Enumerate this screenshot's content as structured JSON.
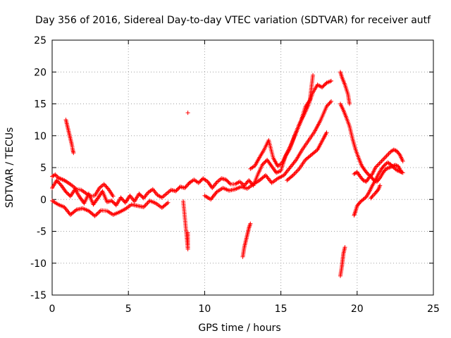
{
  "chart_data": {
    "type": "scatter",
    "title": "Day 356 of 2016, Sidereal Day-to-day VTEC variation (SDTVAR) for receiver autf",
    "xlabel": "GPS time / hours",
    "ylabel": "SDTVAR / TECUs",
    "xlim": [
      0,
      25
    ],
    "ylim": [
      -15,
      25
    ],
    "xticks": [
      0,
      5,
      10,
      15,
      20,
      25
    ],
    "yticks": [
      -15,
      -10,
      -5,
      0,
      5,
      10,
      15,
      20,
      25
    ],
    "grid": true,
    "marker": "+",
    "color": "#ff0000",
    "segments": [
      {
        "name": "main-trace-early",
        "points": [
          [
            0.0,
            1.8
          ],
          [
            0.3,
            3.0
          ],
          [
            0.6,
            2.2
          ],
          [
            0.9,
            1.2
          ],
          [
            1.2,
            0.5
          ],
          [
            1.5,
            1.6
          ],
          [
            1.8,
            0.4
          ],
          [
            2.1,
            -0.6
          ],
          [
            2.4,
            0.9
          ],
          [
            2.7,
            -0.8
          ],
          [
            3.0,
            0.2
          ],
          [
            3.3,
            1.3
          ],
          [
            3.6,
            -0.4
          ],
          [
            3.9,
            -0.2
          ],
          [
            4.2,
            -0.9
          ],
          [
            4.5,
            0.3
          ],
          [
            4.8,
            -0.5
          ],
          [
            5.1,
            0.6
          ],
          [
            5.4,
            -0.3
          ],
          [
            5.7,
            0.9
          ],
          [
            6.0,
            0.2
          ],
          [
            6.3,
            1.1
          ],
          [
            6.6,
            1.6
          ],
          [
            6.9,
            0.7
          ],
          [
            7.2,
            0.3
          ],
          [
            7.5,
            0.9
          ],
          [
            7.8,
            1.5
          ],
          [
            8.1,
            1.3
          ],
          [
            8.4,
            2.0
          ],
          [
            8.7,
            1.8
          ],
          [
            9.0,
            2.6
          ]
        ]
      },
      {
        "name": "lower-band-early",
        "points": [
          [
            0.0,
            -0.2
          ],
          [
            0.4,
            -0.8
          ],
          [
            0.8,
            -1.2
          ],
          [
            1.2,
            -2.4
          ],
          [
            1.6,
            -1.6
          ],
          [
            2.0,
            -1.4
          ],
          [
            2.4,
            -1.8
          ],
          [
            2.8,
            -2.6
          ],
          [
            3.2,
            -1.7
          ],
          [
            3.6,
            -1.8
          ],
          [
            4.0,
            -2.4
          ],
          [
            4.4,
            -2.0
          ],
          [
            4.8,
            -1.5
          ],
          [
            5.2,
            -0.8
          ],
          [
            5.6,
            -1.0
          ],
          [
            6.0,
            -1.2
          ],
          [
            6.4,
            -0.2
          ],
          [
            6.8,
            -0.6
          ],
          [
            7.2,
            -1.3
          ],
          [
            7.6,
            -0.5
          ]
        ]
      },
      {
        "name": "upper-band-early",
        "points": [
          [
            0.0,
            3.6
          ],
          [
            0.2,
            3.9
          ],
          [
            0.4,
            3.4
          ],
          [
            0.6,
            3.2
          ],
          [
            0.8,
            3.0
          ],
          [
            1.0,
            2.7
          ],
          [
            1.3,
            2.2
          ],
          [
            1.6,
            1.6
          ],
          [
            1.9,
            1.5
          ],
          [
            2.2,
            1.0
          ],
          [
            2.5,
            0.5
          ],
          [
            2.8,
            0.6
          ],
          [
            3.1,
            1.8
          ],
          [
            3.4,
            2.4
          ],
          [
            3.7,
            1.6
          ],
          [
            4.0,
            0.5
          ]
        ]
      },
      {
        "name": "spike-1h",
        "points": [
          [
            0.9,
            12.5
          ],
          [
            1.0,
            11.5
          ],
          [
            1.1,
            10.5
          ],
          [
            1.2,
            9.5
          ],
          [
            1.3,
            8.5
          ],
          [
            1.35,
            7.8
          ],
          [
            1.4,
            7.3
          ]
        ]
      },
      {
        "name": "mid-trace",
        "points": [
          [
            9.0,
            2.6
          ],
          [
            9.3,
            3.1
          ],
          [
            9.6,
            2.6
          ],
          [
            9.9,
            3.3
          ],
          [
            10.2,
            2.8
          ],
          [
            10.5,
            1.8
          ],
          [
            10.8,
            2.7
          ],
          [
            11.1,
            3.3
          ],
          [
            11.4,
            3.1
          ],
          [
            11.7,
            2.4
          ],
          [
            12.0,
            2.4
          ],
          [
            12.3,
            2.8
          ],
          [
            12.6,
            2.2
          ],
          [
            12.9,
            3.0
          ],
          [
            13.2,
            2.2
          ],
          [
            13.5,
            4.0
          ],
          [
            13.8,
            5.5
          ],
          [
            14.1,
            6.2
          ],
          [
            14.4,
            5.2
          ],
          [
            14.7,
            4.2
          ],
          [
            15.0,
            4.5
          ],
          [
            15.3,
            6.8
          ],
          [
            15.6,
            8.0
          ],
          [
            15.9,
            10.0
          ],
          [
            16.2,
            11.8
          ],
          [
            16.5,
            13.2
          ],
          [
            16.8,
            14.8
          ],
          [
            17.1,
            16.8
          ],
          [
            17.4,
            18.0
          ],
          [
            17.7,
            17.6
          ],
          [
            18.0,
            18.3
          ],
          [
            18.3,
            18.6
          ]
        ]
      },
      {
        "name": "mid-lower-band",
        "points": [
          [
            10.0,
            0.6
          ],
          [
            10.4,
            0.0
          ],
          [
            10.8,
            1.2
          ],
          [
            11.2,
            1.8
          ],
          [
            11.6,
            1.4
          ],
          [
            12.0,
            1.6
          ],
          [
            12.4,
            2.0
          ],
          [
            12.8,
            1.7
          ],
          [
            13.2,
            2.4
          ],
          [
            13.6,
            3.0
          ],
          [
            14.0,
            3.8
          ],
          [
            14.4,
            2.6
          ],
          [
            14.8,
            3.3
          ],
          [
            15.2,
            3.8
          ],
          [
            15.6,
            5.0
          ],
          [
            16.0,
            6.2
          ],
          [
            16.4,
            7.8
          ],
          [
            16.8,
            9.2
          ],
          [
            17.2,
            10.6
          ],
          [
            17.6,
            12.4
          ],
          [
            18.0,
            14.6
          ],
          [
            18.3,
            15.4
          ]
        ]
      },
      {
        "name": "mid-upper-band",
        "points": [
          [
            13.0,
            4.8
          ],
          [
            13.3,
            5.3
          ],
          [
            13.6,
            6.6
          ],
          [
            13.9,
            7.8
          ],
          [
            14.2,
            9.3
          ],
          [
            14.5,
            6.5
          ],
          [
            14.8,
            5.2
          ],
          [
            15.1,
            5.8
          ],
          [
            15.4,
            7.3
          ],
          [
            15.7,
            8.8
          ],
          [
            16.0,
            10.5
          ],
          [
            16.3,
            12.2
          ],
          [
            16.6,
            14.5
          ],
          [
            16.9,
            15.6
          ],
          [
            17.1,
            19.5
          ]
        ]
      },
      {
        "name": "lower-band-mid",
        "points": [
          [
            15.4,
            3.0
          ],
          [
            15.8,
            3.8
          ],
          [
            16.2,
            4.8
          ],
          [
            16.6,
            6.2
          ],
          [
            17.0,
            7.0
          ],
          [
            17.4,
            7.8
          ],
          [
            17.8,
            9.6
          ],
          [
            18.0,
            10.5
          ]
        ]
      },
      {
        "name": "spike-9h",
        "points": [
          [
            8.9,
            13.6
          ]
        ]
      },
      {
        "name": "outliers-9h",
        "points": [
          [
            8.9,
            -5.2
          ],
          [
            8.9,
            -7.8
          ],
          [
            8.6,
            -0.3
          ]
        ]
      },
      {
        "name": "dip-12h",
        "points": [
          [
            12.5,
            -9.0
          ],
          [
            12.6,
            -7.5
          ],
          [
            12.7,
            -6.5
          ],
          [
            12.8,
            -5.5
          ],
          [
            12.9,
            -4.5
          ],
          [
            13.0,
            -3.8
          ]
        ]
      },
      {
        "name": "dip-19h",
        "points": [
          [
            18.9,
            -12.0
          ],
          [
            19.0,
            -10.5
          ],
          [
            19.05,
            -9.5
          ],
          [
            19.1,
            -8.5
          ],
          [
            19.2,
            -7.5
          ]
        ]
      },
      {
        "name": "late-upper",
        "points": [
          [
            18.9,
            20.0
          ],
          [
            19.0,
            19.2
          ],
          [
            19.2,
            18.0
          ],
          [
            19.4,
            16.5
          ],
          [
            19.5,
            15.0
          ]
        ]
      },
      {
        "name": "late-descent",
        "points": [
          [
            18.9,
            15.0
          ],
          [
            19.1,
            14.0
          ],
          [
            19.3,
            12.8
          ],
          [
            19.5,
            11.5
          ],
          [
            19.7,
            9.5
          ],
          [
            19.9,
            7.8
          ],
          [
            20.1,
            6.5
          ],
          [
            20.3,
            5.3
          ],
          [
            20.5,
            4.6
          ],
          [
            20.7,
            4.0
          ],
          [
            20.9,
            3.6
          ],
          [
            21.1,
            3.0
          ],
          [
            21.3,
            2.8
          ],
          [
            21.5,
            3.4
          ],
          [
            21.7,
            4.2
          ],
          [
            21.9,
            4.8
          ],
          [
            22.1,
            5.0
          ],
          [
            22.3,
            5.2
          ],
          [
            22.5,
            5.4
          ],
          [
            22.7,
            5.2
          ],
          [
            22.9,
            4.3
          ]
        ]
      },
      {
        "name": "late-cluster",
        "points": [
          [
            19.8,
            4.0
          ],
          [
            20.0,
            4.3
          ],
          [
            20.2,
            3.6
          ],
          [
            20.4,
            3.0
          ],
          [
            20.6,
            2.8
          ],
          [
            20.8,
            3.5
          ],
          [
            21.0,
            4.0
          ],
          [
            21.2,
            5.0
          ],
          [
            21.4,
            5.5
          ],
          [
            21.6,
            6.0
          ],
          [
            21.8,
            6.5
          ],
          [
            22.0,
            7.0
          ],
          [
            22.2,
            7.5
          ],
          [
            22.4,
            7.8
          ],
          [
            22.6,
            7.6
          ],
          [
            22.8,
            7.0
          ],
          [
            23.0,
            6.0
          ]
        ]
      },
      {
        "name": "late-rise",
        "points": [
          [
            19.8,
            -2.5
          ],
          [
            19.9,
            -1.8
          ],
          [
            20.0,
            -1.0
          ],
          [
            20.2,
            -0.4
          ],
          [
            20.4,
            0.0
          ],
          [
            20.6,
            0.4
          ],
          [
            20.8,
            1.2
          ],
          [
            21.0,
            2.2
          ],
          [
            21.2,
            3.0
          ],
          [
            21.4,
            4.0
          ],
          [
            21.6,
            4.8
          ],
          [
            21.8,
            5.4
          ],
          [
            22.0,
            5.8
          ],
          [
            22.2,
            5.5
          ],
          [
            22.4,
            5.0
          ],
          [
            22.6,
            4.6
          ],
          [
            22.8,
            4.4
          ],
          [
            23.0,
            4.2
          ]
        ]
      },
      {
        "name": "late-lower",
        "points": [
          [
            20.9,
            0.2
          ],
          [
            21.0,
            0.5
          ],
          [
            21.2,
            1.0
          ],
          [
            21.4,
            1.6
          ],
          [
            21.5,
            2.2
          ]
        ]
      }
    ]
  }
}
